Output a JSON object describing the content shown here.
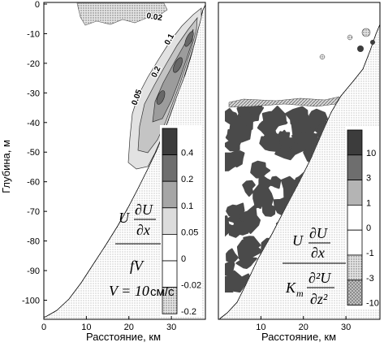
{
  "chart_data": [
    {
      "type": "heatmap",
      "xlabel": "Расстояние, км",
      "ylabel": "Глубина, м",
      "xlim": [
        0,
        38
      ],
      "ylim": [
        -107,
        0
      ],
      "xticks": [
        "0",
        "10",
        "20",
        "30"
      ],
      "yticks": [
        "0",
        "-10",
        "-20",
        "-30",
        "-40",
        "-50",
        "-60",
        "-70",
        "-80",
        "-90",
        "-100"
      ],
      "contour_labels": [
        "0.02",
        "0.1",
        "0.2",
        "0.05"
      ],
      "colorbar": {
        "labels": [
          "0.4",
          "0.2",
          "0.1",
          "0.05",
          "0",
          "-0.02",
          "-0.2"
        ],
        "fills": [
          "#3c3c3c",
          "#6e6e6e",
          "#a6a6a6",
          "#dcdcdc",
          "#ffffff",
          "#ffffff",
          "stipple"
        ]
      },
      "formula": {
        "factor": "U",
        "d_num": "∂U",
        "d_den": "∂x",
        "denominator": "fV",
        "velocity": "V = 10",
        "velocity_unit": "см/с"
      }
    },
    {
      "type": "heatmap",
      "xlabel": "Расстояние, км",
      "xlim": [
        0,
        38
      ],
      "ylim": [
        -107,
        0
      ],
      "xticks": [
        "10",
        "20",
        "30"
      ],
      "colorbar": {
        "labels": [
          "10",
          "3",
          "1",
          "0",
          "-1",
          "-3",
          "-10"
        ],
        "fills": [
          "#3c3c3c",
          "#6e6e6e",
          "#b4b4b4",
          "#ffffff",
          "#ffffff",
          "stipple",
          "crosshatch"
        ]
      },
      "formula": {
        "factor": "U",
        "d_num": "∂U",
        "d_den": "∂x",
        "den_factor": "K",
        "den_sub": "m",
        "d2_num": "∂²U",
        "d2_den": "∂z²"
      }
    }
  ]
}
